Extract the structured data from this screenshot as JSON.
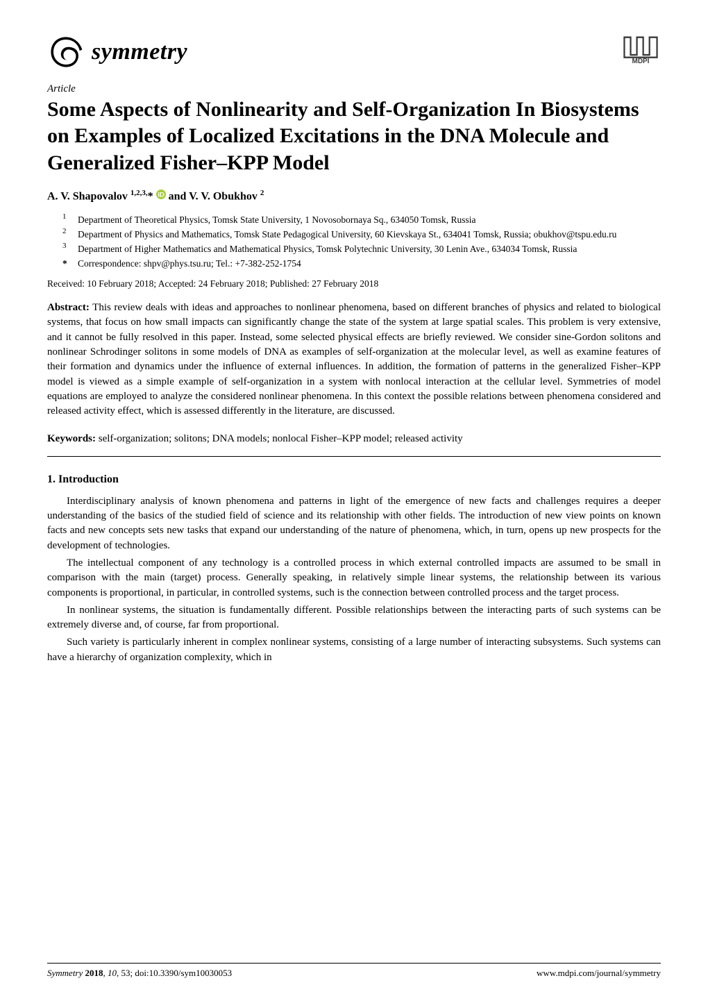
{
  "journal": {
    "name": "symmetry",
    "logo_color": "#000000",
    "publisher": "MDPI",
    "publisher_logo_color": "#3a3a3a"
  },
  "article_type": "Article",
  "title": "Some Aspects of Nonlinearity and Self-Organization In Biosystems on Examples of Localized Excitations in the DNA Molecule and Generalized Fisher–KPP Model",
  "authors_html": "A. V. Shapovalov <sup>1,2,3,</sup>* <svg class='orcid' viewBox='0 0 16 16'><circle cx='8' cy='8' r='8' fill='#a6ce39'/><text x='8' y='12' text-anchor='middle' font-size='11' font-family='Arial' fill='#fff' font-weight='bold'>iD</text></svg> and V. V. Obukhov <sup>2</sup>",
  "affiliations": [
    {
      "num": "1",
      "text": "Department of Theoretical Physics, Tomsk State University, 1 Novosobornaya Sq., 634050 Tomsk, Russia"
    },
    {
      "num": "2",
      "text": "Department of Physics and Mathematics, Tomsk State Pedagogical University, 60 Kievskaya St., 634041 Tomsk, Russia; obukhov@tspu.edu.ru"
    },
    {
      "num": "3",
      "text": "Department of Higher Mathematics and Mathematical Physics, Tomsk Polytechnic University, 30 Lenin Ave., 634034 Tomsk, Russia"
    }
  ],
  "correspondence": {
    "star": "*",
    "text": "Correspondence: shpv@phys.tsu.ru; Tel.: +7-382-252-1754"
  },
  "dates": "Received: 10 February 2018; Accepted: 24 February 2018; Published: 27 February 2018",
  "abstract_label": "Abstract:",
  "abstract": "This review deals with ideas and approaches to nonlinear phenomena, based on different branches of physics and related to biological systems, that focus on how small impacts can significantly change the state of the system at large spatial scales. This problem is very extensive, and it cannot be fully resolved in this paper. Instead, some selected physical effects are briefly reviewed. We consider sine-Gordon solitons and nonlinear Schrodinger solitons in some models of DNA as examples of self-organization at the molecular level, as well as examine features of their formation and dynamics under the influence of external influences. In addition, the formation of patterns in the generalized Fisher–KPP model is viewed as a simple example of self-organization in a system with nonlocal interaction at the cellular level. Symmetries of model equations are employed to analyze the considered nonlinear phenomena. In this context the possible relations between phenomena considered and released activity effect, which is assessed differently in the literature, are discussed.",
  "keywords_label": "Keywords:",
  "keywords": "self-organization; solitons; DNA models; nonlocal Fisher–KPP model; released activity",
  "section": {
    "number": "1.",
    "title": "Introduction"
  },
  "body": [
    "Interdisciplinary analysis of known phenomena and patterns in light of the emergence of new facts and challenges requires a deeper understanding of the basics of the studied field of science and its relationship with other fields. The introduction of new view points on known facts and new concepts sets new tasks that expand our understanding of the nature of phenomena, which, in turn, opens up new prospects for the development of technologies.",
    "The intellectual component of any technology is a controlled process in which external controlled impacts are assumed to be small in comparison with the main (target) process. Generally speaking, in relatively simple linear systems, the relationship between its various components is proportional, in particular, in controlled systems, such is the connection between controlled process and the target process.",
    "In nonlinear systems, the situation is fundamentally different. Possible relationships between the interacting parts of such systems can be extremely diverse and, of course, far from proportional.",
    "Such variety is particularly inherent in complex nonlinear systems, consisting of a large number of interacting subsystems. Such systems can have a hierarchy of organization complexity, which in"
  ],
  "footer": {
    "left_html": "<i>Symmetry</i> <b>2018</b>, <i>10</i>, 53; doi:10.3390/sym10030053",
    "right": "www.mdpi.com/journal/symmetry"
  },
  "colors": {
    "text": "#000000",
    "background": "#ffffff",
    "orcid": "#a6ce39",
    "divider": "#000000"
  },
  "typography": {
    "title_fontsize": 30,
    "body_fontsize": 15,
    "affiliation_fontsize": 13.5,
    "footer_fontsize": 13,
    "journal_name_fontsize": 34,
    "font_family": "Palatino Linotype, Book Antiqua, Palatino, Georgia, serif"
  }
}
